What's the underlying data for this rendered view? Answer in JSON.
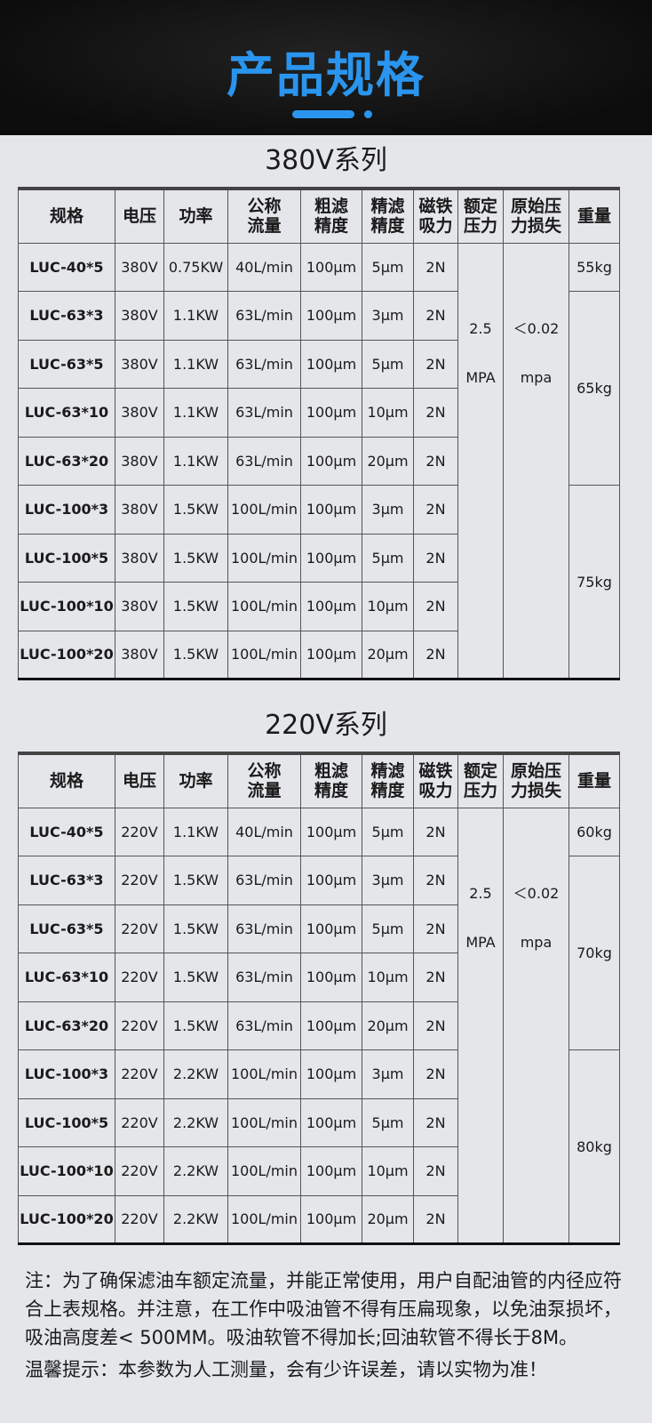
{
  "header": {
    "title": "产品规格",
    "accent": "#2a95ee"
  },
  "columns": [
    "规格",
    "电压",
    "功率",
    "公称\n流量",
    "粗滤\n精度",
    "精滤\n精度",
    "磁铁\n吸力",
    "额定\n压力",
    "原始压\n力损失",
    "重量"
  ],
  "tables": [
    {
      "title": "380V系列",
      "rows": [
        [
          "LUC-40*5",
          "380V",
          "0.75KW",
          "40L/min",
          "100μm",
          "5μm",
          "2N"
        ],
        [
          "LUC-63*3",
          "380V",
          "1.1KW",
          "63L/min",
          "100μm",
          "3μm",
          "2N"
        ],
        [
          "LUC-63*5",
          "380V",
          "1.1KW",
          "63L/min",
          "100μm",
          "5μm",
          "2N"
        ],
        [
          "LUC-63*10",
          "380V",
          "1.1KW",
          "63L/min",
          "100μm",
          "10μm",
          "2N"
        ],
        [
          "LUC-63*20",
          "380V",
          "1.1KW",
          "63L/min",
          "100μm",
          "20μm",
          "2N"
        ],
        [
          "LUC-100*3",
          "380V",
          "1.5KW",
          "100L/min",
          "100μm",
          "3μm",
          "2N"
        ],
        [
          "LUC-100*5",
          "380V",
          "1.5KW",
          "100L/min",
          "100μm",
          "5μm",
          "2N"
        ],
        [
          "LUC-100*10",
          "380V",
          "1.5KW",
          "100L/min",
          "100μm",
          "10μm",
          "2N"
        ],
        [
          "LUC-100*20",
          "380V",
          "1.5KW",
          "100L/min",
          "100μm",
          "20μm",
          "2N"
        ]
      ],
      "pressure": "2.5\nMPA",
      "loss": "＜0.02\nmpa",
      "weights": [
        "55kg",
        "65kg",
        "75kg"
      ]
    },
    {
      "title": "220V系列",
      "rows": [
        [
          "LUC-40*5",
          "220V",
          "1.1KW",
          "40L/min",
          "100μm",
          "5μm",
          "2N"
        ],
        [
          "LUC-63*3",
          "220V",
          "1.5KW",
          "63L/min",
          "100μm",
          "3μm",
          "2N"
        ],
        [
          "LUC-63*5",
          "220V",
          "1.5KW",
          "63L/min",
          "100μm",
          "5μm",
          "2N"
        ],
        [
          "LUC-63*10",
          "220V",
          "1.5KW",
          "63L/min",
          "100μm",
          "10μm",
          "2N"
        ],
        [
          "LUC-63*20",
          "220V",
          "1.5KW",
          "63L/min",
          "100μm",
          "20μm",
          "2N"
        ],
        [
          "LUC-100*3",
          "220V",
          "2.2KW",
          "100L/min",
          "100μm",
          "3μm",
          "2N"
        ],
        [
          "LUC-100*5",
          "220V",
          "2.2KW",
          "100L/min",
          "100μm",
          "5μm",
          "2N"
        ],
        [
          "LUC-100*10",
          "220V",
          "2.2KW",
          "100L/min",
          "100μm",
          "10μm",
          "2N"
        ],
        [
          "LUC-100*20",
          "220V",
          "2.2KW",
          "100L/min",
          "100μm",
          "20μm",
          "2N"
        ]
      ],
      "pressure": "2.5\nMPA",
      "loss": "＜0.02\nmpa",
      "weights": [
        "60kg",
        "70kg",
        "80kg"
      ]
    }
  ],
  "notes": [
    "注：为了确保滤油车额定流量，并能正常使用，用户自配油管的内径应符合上表规格。并注意，在工作中吸油管不得有压扁现象，以免油泵损坏，吸油高度差< 500MM。吸油软管不得加长;回油软管不得长于8M。",
    "温馨提示：本参数为人工测量，会有少许误差，请以实物为准！"
  ]
}
